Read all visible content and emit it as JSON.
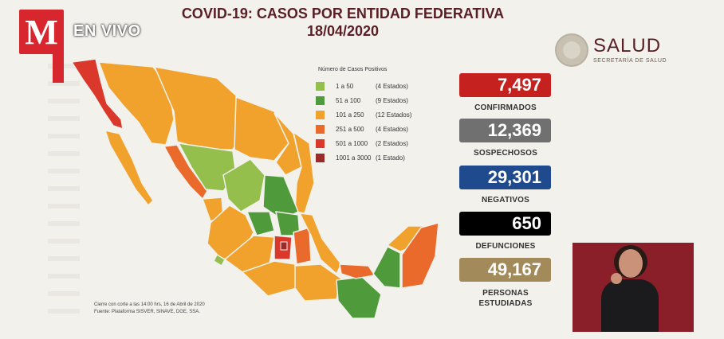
{
  "broadcast": {
    "logo_letter": "M",
    "live_label": "EN VIVO"
  },
  "header": {
    "title_line1": "COVID-19: CASOS POR ENTIDAD FEDERATIVA",
    "title_line2": "18/04/2020"
  },
  "agency": {
    "name": "SALUD",
    "subtitle": "SECRETARÍA DE SALUD"
  },
  "legend": {
    "title": "Número de Casos Positivos",
    "items": [
      {
        "range": "1 a 50",
        "count": "(4 Estados)",
        "color": "#94bf4c"
      },
      {
        "range": "51 a 100",
        "count": "(9 Estados)",
        "color": "#4f9a3a"
      },
      {
        "range": "101 a 250",
        "count": "(12 Estados)",
        "color": "#f0a22c"
      },
      {
        "range": "251 a 500",
        "count": "(4 Estados)",
        "color": "#ea6a2c"
      },
      {
        "range": "501 a 1000",
        "count": "(2 Estados)",
        "color": "#d9382b"
      },
      {
        "range": "1001 a 3000",
        "count": "(1 Estado)",
        "color": "#9b2a2a"
      }
    ]
  },
  "stats": [
    {
      "value": "7,497",
      "label": "CONFIRMADOS",
      "color": "#c5221f"
    },
    {
      "value": "12,369",
      "label": "SOSPECHOSOS",
      "color": "#707070"
    },
    {
      "value": "29,301",
      "label": "NEGATIVOS",
      "color": "#1f4b8e"
    },
    {
      "value": "650",
      "label": "DEFUNCIONES",
      "color": "#000000"
    },
    {
      "value": "49,167",
      "label": "PERSONAS ESTUDIADAS",
      "color": "#a38a5a"
    }
  ],
  "footnote": {
    "line1": "Cierre con corte a las 14:00 hrs, 16 de Abril de 2020",
    "line2": "Fuente: Plataforma SISVER, SINAVE, DGE, SSA."
  }
}
